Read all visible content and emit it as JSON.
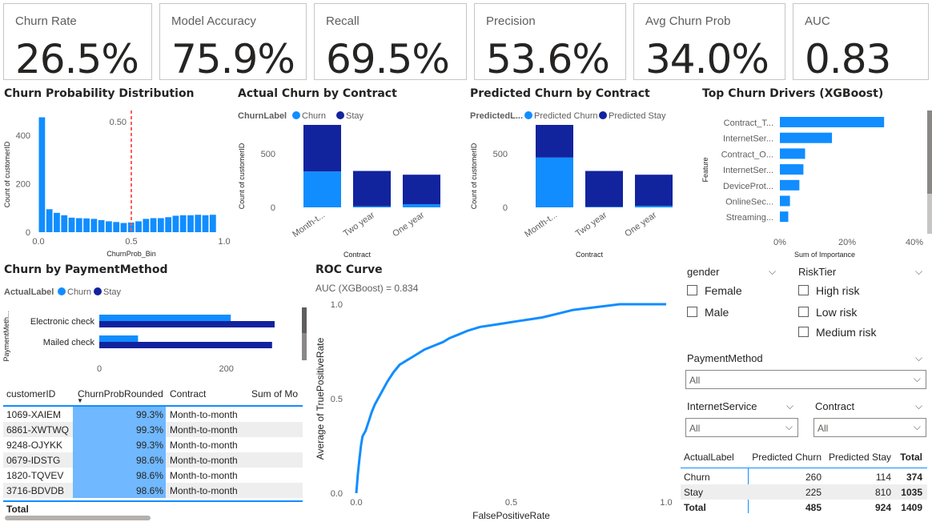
{
  "kpis": [
    {
      "label": "Churn Rate",
      "value": "26.5%"
    },
    {
      "label": "Model Accuracy",
      "value": "75.9%"
    },
    {
      "label": "Recall",
      "value": "69.5%"
    },
    {
      "label": "Precision",
      "value": "53.6%"
    },
    {
      "label": "Avg Churn Prob",
      "value": "34.0%"
    },
    {
      "label": "AUC",
      "value": "0.83"
    }
  ],
  "colors": {
    "churn": "#118dff",
    "stay": "#12239e",
    "threshold": "#ff5a5a",
    "selection": "#70b8ff"
  },
  "titles": {
    "hist": "Churn Probability Distribution",
    "actual": "Actual Churn by Contract",
    "predicted": "Predicted Churn by Contract",
    "drivers": "Top Churn Drivers (XGBoost)",
    "payment": "Churn by PaymentMethod",
    "roc": "ROC Curve"
  },
  "chart_data": [
    {
      "type": "bar",
      "title": "Churn Probability Distribution",
      "xlabel": "ChurnProb_Bin",
      "ylabel": "Count of customerID",
      "threshold_label": "0.50",
      "threshold": 0.5,
      "xlim": [
        0,
        1
      ],
      "ylim": [
        0,
        480
      ],
      "xticks": [
        "0.0",
        "0.5",
        "1.0"
      ],
      "yticks": [
        "0",
        "200",
        "400"
      ],
      "bin_width": 0.04,
      "x": [
        0.0,
        0.04,
        0.08,
        0.12,
        0.16,
        0.2,
        0.24,
        0.28,
        0.32,
        0.36,
        0.4,
        0.44,
        0.48,
        0.52,
        0.56,
        0.6,
        0.64,
        0.68,
        0.72,
        0.76,
        0.8,
        0.84,
        0.88,
        0.92
      ],
      "values": [
        475,
        95,
        80,
        70,
        60,
        58,
        57,
        55,
        50,
        45,
        42,
        38,
        40,
        45,
        55,
        58,
        58,
        62,
        68,
        70,
        70,
        72,
        70,
        72
      ]
    },
    {
      "type": "bar",
      "title": "Actual Churn by Contract",
      "legend_title": "ChurnLabel",
      "legend": [
        "Churn",
        "Stay"
      ],
      "xlabel": "Contract",
      "ylabel": "Count of customerID",
      "categories": [
        "Month-t...",
        "Two year",
        "One year"
      ],
      "yticks": [
        "0",
        "500"
      ],
      "ylim": [
        0,
        800
      ],
      "series": [
        {
          "name": "Churn",
          "values": [
            335,
            10,
            30
          ]
        },
        {
          "name": "Stay",
          "values": [
            435,
            330,
            275
          ]
        }
      ]
    },
    {
      "type": "bar",
      "title": "Predicted Churn by Contract",
      "legend_title": "PredictedL...",
      "legend": [
        "Predicted Churn",
        "Predicted Stay"
      ],
      "xlabel": "Contract",
      "ylabel": "Count of customerID",
      "categories": [
        "Month-t...",
        "Two year",
        "One year"
      ],
      "yticks": [
        "0",
        "500"
      ],
      "ylim": [
        0,
        800
      ],
      "series": [
        {
          "name": "Predicted Churn",
          "values": [
            465,
            5,
            15
          ]
        },
        {
          "name": "Predicted Stay",
          "values": [
            305,
            335,
            290
          ]
        }
      ]
    },
    {
      "type": "bar",
      "orientation": "horizontal",
      "title": "Top Churn Drivers (XGBoost)",
      "xlabel": "Sum of Importance",
      "ylabel": "Feature",
      "categories": [
        "Contract_T...",
        "InternetSer...",
        "Contract_O...",
        "InternetSer...",
        "DeviceProt...",
        "OnlineSec...",
        "Streaming..."
      ],
      "values": [
        31,
        15.5,
        7.5,
        7,
        5.8,
        3,
        2.5
      ],
      "xlim": [
        0,
        40
      ],
      "xticks": [
        "0%",
        "20%",
        "40%"
      ]
    },
    {
      "type": "bar",
      "orientation": "horizontal",
      "title": "Churn by PaymentMethod",
      "legend_title": "ActualLabel",
      "legend": [
        "Churn",
        "Stay"
      ],
      "ylabel": "PaymentMeth...",
      "categories": [
        "Electronic check",
        "Mailed check"
      ],
      "xticks": [
        "0",
        "200"
      ],
      "xlim": [
        0,
        300
      ],
      "series": [
        {
          "name": "Churn",
          "values": [
            207,
            61
          ]
        },
        {
          "name": "Stay",
          "values": [
            276,
            272
          ]
        }
      ]
    },
    {
      "type": "line",
      "title": "ROC Curve",
      "subtitle": "AUC (XGBoost) = 0.834",
      "xlabel": "FalsePositiveRate",
      "ylabel": "Average of TruePositiveRate",
      "xlim": [
        0,
        1
      ],
      "ylim": [
        0,
        1
      ],
      "xticks": [
        "0.0",
        "0.5",
        "1.0"
      ],
      "yticks": [
        "0.0",
        "0.5",
        "1.0"
      ],
      "x": [
        0,
        0.005,
        0.01,
        0.015,
        0.02,
        0.03,
        0.04,
        0.05,
        0.06,
        0.07,
        0.08,
        0.1,
        0.12,
        0.14,
        0.16,
        0.18,
        0.2,
        0.22,
        0.25,
        0.28,
        0.3,
        0.33,
        0.36,
        0.4,
        0.44,
        0.48,
        0.52,
        0.56,
        0.6,
        0.65,
        0.7,
        0.75,
        0.8,
        0.85,
        0.9,
        0.95,
        1.0
      ],
      "y": [
        0,
        0.1,
        0.18,
        0.25,
        0.3,
        0.33,
        0.38,
        0.43,
        0.47,
        0.5,
        0.53,
        0.59,
        0.64,
        0.68,
        0.7,
        0.72,
        0.74,
        0.76,
        0.78,
        0.8,
        0.82,
        0.84,
        0.86,
        0.88,
        0.89,
        0.9,
        0.91,
        0.92,
        0.93,
        0.95,
        0.97,
        0.98,
        0.99,
        1.0,
        1.0,
        1.0,
        1.0
      ]
    }
  ],
  "slicers": {
    "gender": {
      "title": "gender",
      "options": [
        "Female",
        "Male"
      ]
    },
    "risk": {
      "title": "RiskTier",
      "options": [
        "High risk",
        "Low risk",
        "Medium risk"
      ]
    },
    "payment": {
      "title": "PaymentMethod",
      "value": "All"
    },
    "internet": {
      "title": "InternetService",
      "value": "All"
    },
    "contract": {
      "title": "Contract",
      "value": "All"
    }
  },
  "table": {
    "headers": [
      "customerID",
      "ChurnProbRounded",
      "Contract",
      "Sum of Mo"
    ],
    "rows": [
      {
        "id": "1069-XAIEM",
        "prob": "99.3%",
        "contract": "Month-to-month"
      },
      {
        "id": "6861-XWTWQ",
        "prob": "99.3%",
        "contract": "Month-to-month"
      },
      {
        "id": "9248-OJYKK",
        "prob": "99.3%",
        "contract": "Month-to-month"
      },
      {
        "id": "0679-IDSTG",
        "prob": "98.6%",
        "contract": "Month-to-month"
      },
      {
        "id": "1820-TQVEV",
        "prob": "98.6%",
        "contract": "Month-to-month"
      },
      {
        "id": "3716-BDVDB",
        "prob": "98.6%",
        "contract": "Month-to-month"
      }
    ],
    "total_label": "Total"
  },
  "matrix": {
    "headers": [
      "ActualLabel",
      "Predicted Churn",
      "Predicted Stay",
      "Total"
    ],
    "rows": [
      {
        "label": "Churn",
        "pc": "260",
        "ps": "114",
        "total": "374"
      },
      {
        "label": "Stay",
        "pc": "225",
        "ps": "810",
        "total": "1035"
      },
      {
        "label": "Total",
        "pc": "485",
        "ps": "924",
        "total": "1409"
      }
    ]
  }
}
